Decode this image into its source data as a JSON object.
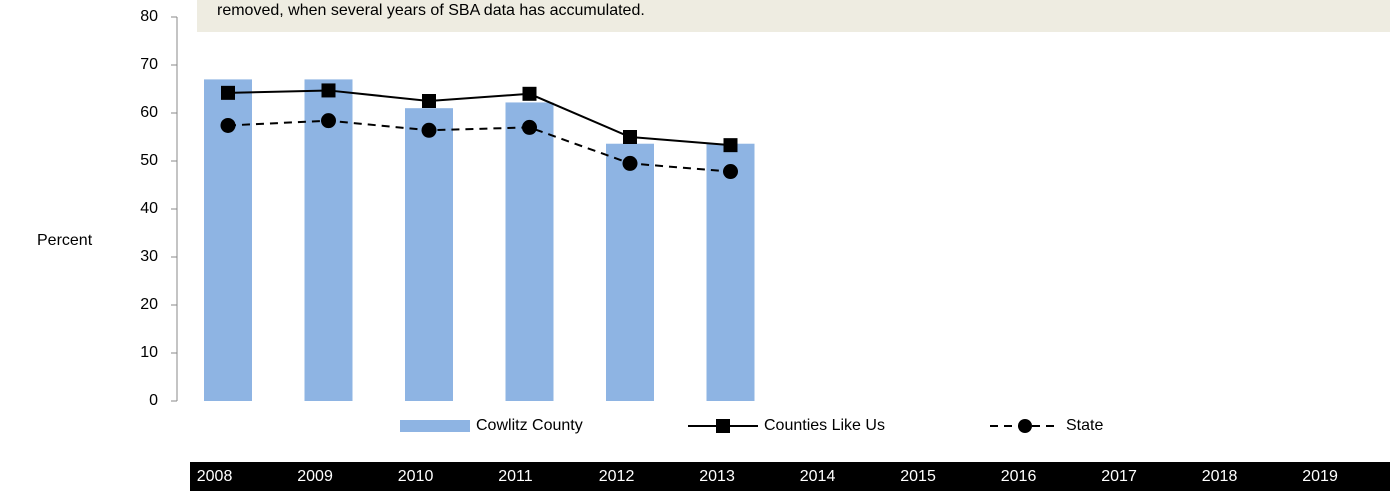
{
  "chart_data": {
    "type": "bar",
    "annotation": "removed, when several years of  SBA data has accumulated.",
    "y_label": "Percent",
    "categories": [
      "2008",
      "2009",
      "2010",
      "2011",
      "2012",
      "2013",
      "2014",
      "2015",
      "2016",
      "2017",
      "2018",
      "2019"
    ],
    "series": [
      {
        "name": "Cowlitz County",
        "type": "bar",
        "color": "#8eb4e3",
        "values": [
          67,
          67,
          61,
          62.2,
          53.6,
          53.6,
          null,
          null,
          null,
          null,
          null,
          null
        ]
      },
      {
        "name": "Counties Like Us",
        "type": "line",
        "color": "#000000",
        "marker": "square",
        "dash": false,
        "values": [
          64.2,
          64.7,
          62.5,
          64,
          55,
          53.3,
          null,
          null,
          null,
          null,
          null,
          null
        ]
      },
      {
        "name": "State",
        "type": "line",
        "color": "#000000",
        "marker": "circle",
        "dash": true,
        "values": [
          57.4,
          58.4,
          56.4,
          57,
          49.5,
          47.8,
          null,
          null,
          null,
          null,
          null,
          null
        ]
      }
    ],
    "ylim": [
      0,
      80
    ],
    "yticks": [
      0,
      10,
      20,
      30,
      40,
      50,
      60,
      70,
      80
    ],
    "grid": false
  }
}
